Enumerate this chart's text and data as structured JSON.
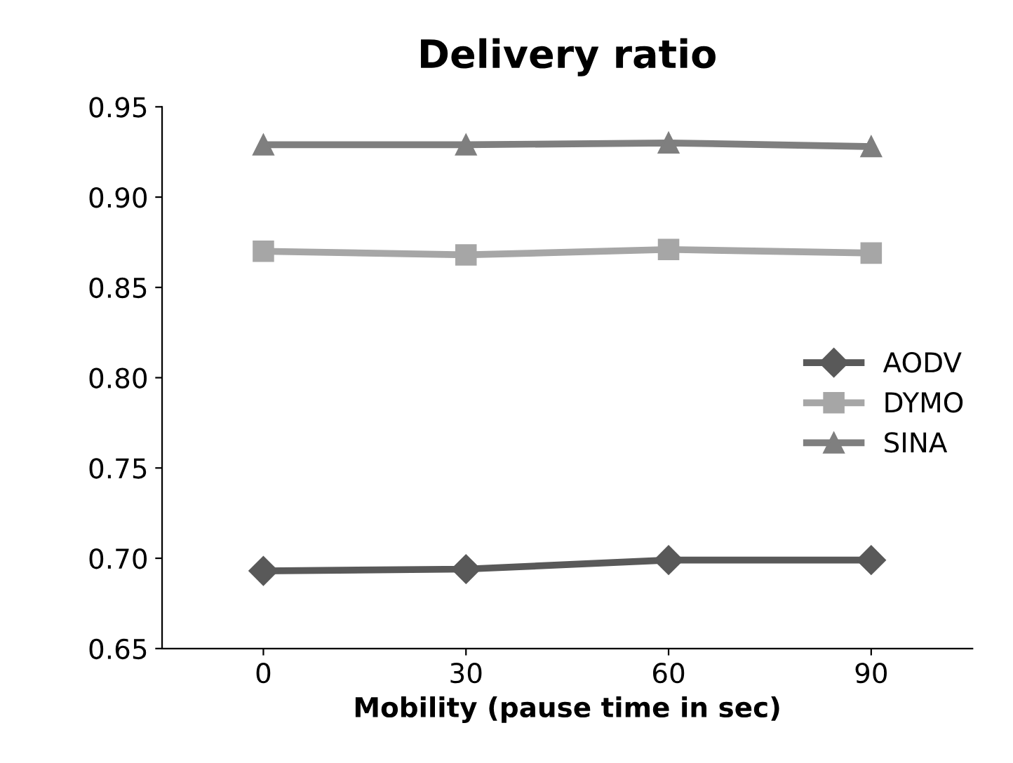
{
  "chart_data": {
    "type": "line",
    "title": "Delivery ratio",
    "xlabel": "Mobility (pause time in sec)",
    "categories": [
      "0",
      "30",
      "60",
      "90"
    ],
    "series": [
      {
        "name": "AODV",
        "color": "#595959",
        "marker": "diamond",
        "values": [
          0.693,
          0.694,
          0.699,
          0.699
        ]
      },
      {
        "name": "DYMO",
        "color": "#a6a6a6",
        "marker": "square",
        "values": [
          0.87,
          0.868,
          0.871,
          0.869
        ]
      },
      {
        "name": "SINA",
        "color": "#7f7f7f",
        "marker": "triangle",
        "values": [
          0.929,
          0.929,
          0.93,
          0.928
        ]
      }
    ],
    "ylim": [
      0.65,
      0.95
    ],
    "yticks": [
      {
        "value": 0.65,
        "label": "0.65"
      },
      {
        "value": 0.7,
        "label": "0.70"
      },
      {
        "value": 0.75,
        "label": "0.75"
      },
      {
        "value": 0.8,
        "label": "0.80"
      },
      {
        "value": 0.85,
        "label": "0.85"
      },
      {
        "value": 0.9,
        "label": "0.90"
      },
      {
        "value": 0.95,
        "label": "0.95"
      }
    ],
    "grid": false,
    "legend": "right",
    "line_style": "solid"
  }
}
